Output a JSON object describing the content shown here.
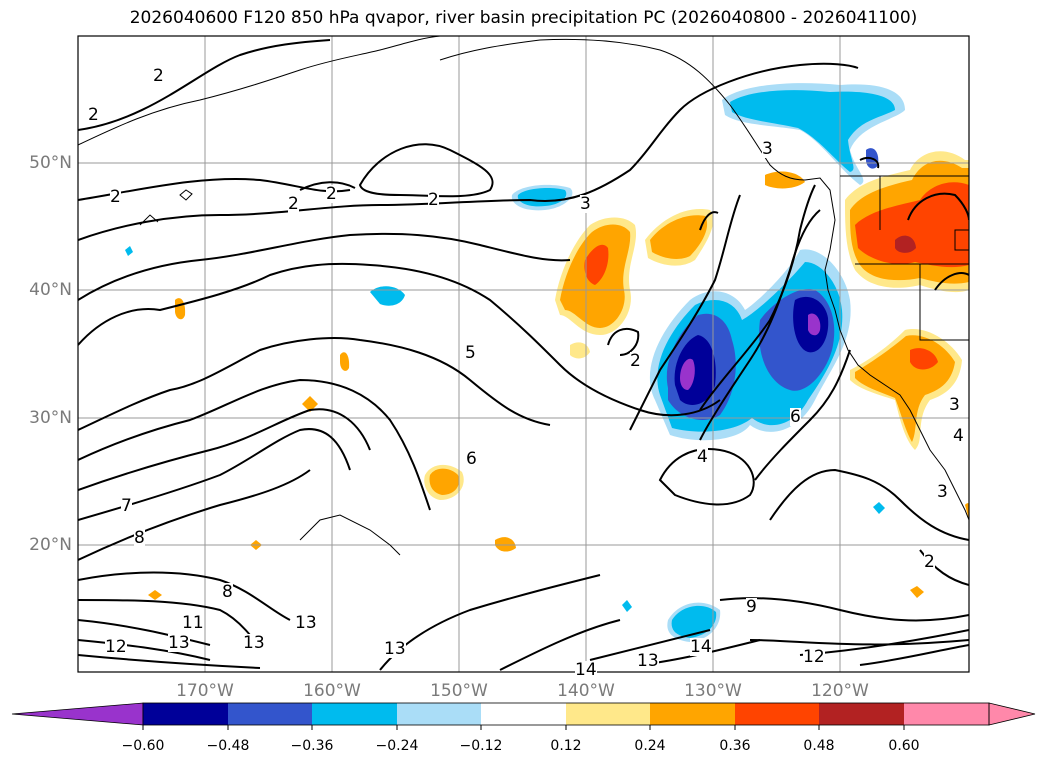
{
  "title": "2026040600 F120 850 hPa qvapor, river basin precipitation PC (2026040800 - 2026041100)",
  "lat_labels": [
    "50°N",
    "40°N",
    "30°N",
    "20°N"
  ],
  "lon_labels": [
    "170°W",
    "160°W",
    "150°W",
    "140°W",
    "130°W",
    "120°W"
  ],
  "contour_labels": [
    "2",
    "2",
    "2",
    "2",
    "2",
    "2",
    "3",
    "3",
    "5",
    "6",
    "6",
    "4",
    "7",
    "8",
    "8",
    "2",
    "12",
    "13",
    "13",
    "11",
    "13",
    "13",
    "14",
    "14",
    "13",
    "12",
    "9",
    "2",
    "4",
    "3",
    "3"
  ],
  "colorbar": {
    "tick_labels": [
      "−0.60",
      "−0.48",
      "−0.36",
      "−0.24",
      "−0.12",
      "0.12",
      "0.24",
      "0.36",
      "0.48",
      "0.60"
    ],
    "colors": [
      "#9933cc",
      "#000099",
      "#3355cc",
      "#00bbee",
      "#aaddf7",
      "#ffffff",
      "#ffe88a",
      "#ffa500",
      "#ff4400",
      "#b22222",
      "#ff88aa"
    ]
  },
  "precip_colors": {
    "neg1": "#aaddf7",
    "neg2": "#00bbee",
    "neg3": "#3355cc",
    "neg4": "#000099",
    "neg5": "#9933cc",
    "pos1": "#ffe88a",
    "pos2": "#ffa500",
    "pos3": "#ff4400",
    "pos4": "#b22222"
  }
}
